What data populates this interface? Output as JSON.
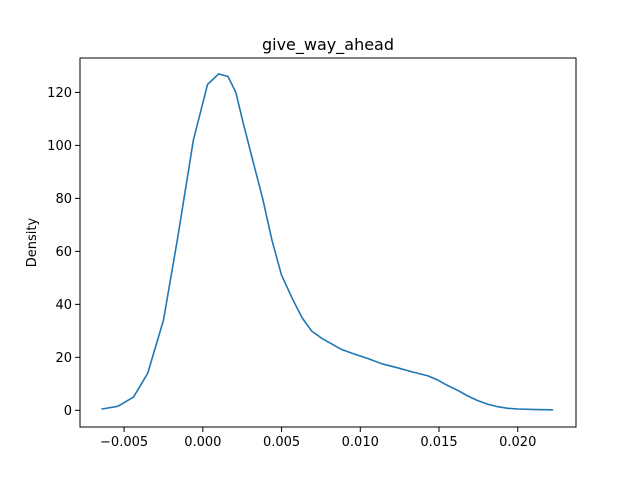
{
  "chart_data": {
    "type": "line",
    "title": "give_way_ahead",
    "xlabel": "",
    "ylabel": "Density",
    "xlim": [
      -0.0078,
      0.0237
    ],
    "ylim": [
      -6.3,
      133
    ],
    "xticks": [
      -0.005,
      0.0,
      0.005,
      0.01,
      0.015,
      0.02
    ],
    "xtick_labels": [
      "−0.005",
      "0.000",
      "0.005",
      "0.010",
      "0.015",
      "0.020"
    ],
    "yticks": [
      0,
      20,
      40,
      60,
      80,
      100,
      120
    ],
    "ytick_labels": [
      "0",
      "20",
      "40",
      "60",
      "80",
      "100",
      "120"
    ],
    "grid": false,
    "line_color": "#1f77b4",
    "series": [
      {
        "x": [
          -0.0064,
          -0.0054,
          -0.0044,
          -0.0035,
          -0.0025,
          -0.0016,
          -0.0006,
          0.0003,
          0.001,
          0.0016,
          0.0021,
          0.0025,
          0.0031,
          0.0038,
          0.0044,
          0.005,
          0.0057,
          0.0063,
          0.0069,
          0.0076,
          0.0082,
          0.0088,
          0.0095,
          0.0105,
          0.0114,
          0.0124,
          0.0133,
          0.0143,
          0.0149,
          0.0155,
          0.0162,
          0.0168,
          0.0174,
          0.0181,
          0.0187,
          0.0193,
          0.02,
          0.0212,
          0.0222
        ],
        "y": [
          0.5,
          1.5,
          5,
          14,
          34,
          65,
          102,
          123,
          127,
          126,
          120,
          110,
          96,
          80,
          64,
          51,
          42,
          35,
          30,
          27,
          25,
          23,
          21.5,
          19.5,
          17.5,
          16,
          14.5,
          13,
          11.5,
          9.5,
          7.5,
          5.5,
          3.8,
          2.3,
          1.4,
          0.8,
          0.5,
          0.3,
          0.2
        ]
      }
    ]
  }
}
